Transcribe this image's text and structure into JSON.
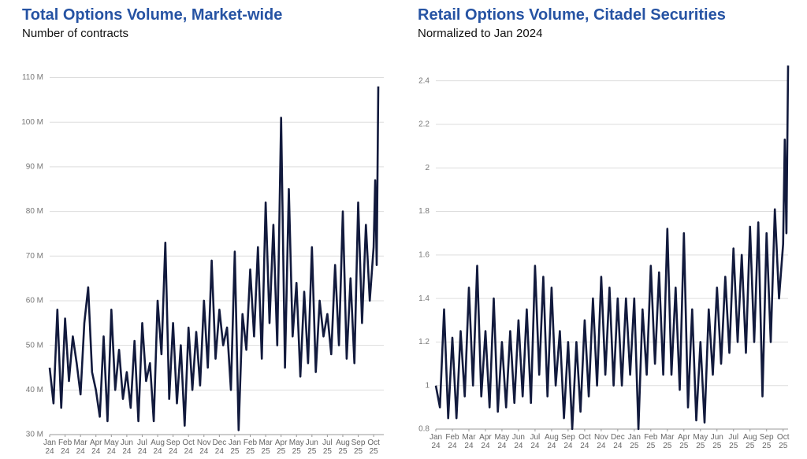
{
  "chart_data": [
    {
      "type": "line",
      "title": "Total Options Volume, Market-wide",
      "subtitle": "Number of contracts",
      "x": [
        0,
        0.25,
        0.5,
        0.75,
        1,
        1.25,
        1.5,
        1.75,
        2,
        2.25,
        2.5,
        2.75,
        3,
        3.25,
        3.5,
        3.75,
        4,
        4.25,
        4.5,
        4.75,
        5,
        5.25,
        5.5,
        5.75,
        6,
        6.25,
        6.5,
        6.75,
        7,
        7.25,
        7.5,
        7.75,
        8,
        8.25,
        8.5,
        8.75,
        9,
        9.25,
        9.5,
        9.75,
        10,
        10.25,
        10.5,
        10.75,
        11,
        11.25,
        11.5,
        11.75,
        12,
        12.25,
        12.5,
        12.75,
        13,
        13.25,
        13.5,
        13.75,
        14,
        14.25,
        14.5,
        14.75,
        15,
        15.25,
        15.5,
        15.75,
        16,
        16.25,
        16.5,
        16.75,
        17,
        17.25,
        17.5,
        17.75,
        18,
        18.25,
        18.5,
        18.75,
        19,
        19.25,
        19.5,
        19.75,
        20,
        20.25,
        20.5,
        20.75,
        21,
        21.1,
        21.2,
        21.3
      ],
      "series": [
        {
          "color": "#121a3d",
          "values": [
            45,
            37,
            58,
            36,
            56,
            42,
            52,
            46,
            39,
            55,
            63,
            44,
            40,
            34,
            52,
            33,
            58,
            40,
            49,
            38,
            44,
            36,
            51,
            33,
            55,
            42,
            46,
            33,
            60,
            48,
            73,
            38,
            55,
            37,
            50,
            32,
            54,
            40,
            53,
            41,
            60,
            45,
            69,
            47,
            58,
            50,
            54,
            40,
            71,
            31,
            57,
            49,
            67,
            52,
            72,
            47,
            82,
            55,
            77,
            50,
            101,
            45,
            85,
            52,
            64,
            43,
            62,
            46,
            72,
            44,
            60,
            52,
            57,
            48,
            68,
            50,
            80,
            47,
            65,
            46,
            82,
            55,
            77,
            60,
            72,
            87,
            68,
            108
          ]
        }
      ],
      "xticks": [
        {
          "value": 0,
          "label": "Jan 24"
        },
        {
          "value": 1,
          "label": "Feb 24"
        },
        {
          "value": 2,
          "label": "Mar 24"
        },
        {
          "value": 3,
          "label": "Apr 24"
        },
        {
          "value": 4,
          "label": "May 24"
        },
        {
          "value": 5,
          "label": "Jun 24"
        },
        {
          "value": 6,
          "label": "Jul 24"
        },
        {
          "value": 7,
          "label": "Aug 24"
        },
        {
          "value": 8,
          "label": "Sep 24"
        },
        {
          "value": 9,
          "label": "Oct 24"
        },
        {
          "value": 10,
          "label": "Nov 24"
        },
        {
          "value": 11,
          "label": "Dec 24"
        },
        {
          "value": 12,
          "label": "Jan 25"
        },
        {
          "value": 13,
          "label": "Feb 25"
        },
        {
          "value": 14,
          "label": "Mar 25"
        },
        {
          "value": 15,
          "label": "Apr 25"
        },
        {
          "value": 16,
          "label": "May 25"
        },
        {
          "value": 17,
          "label": "Jun 25"
        },
        {
          "value": 18,
          "label": "Jul 25"
        },
        {
          "value": 19,
          "label": "Aug 25"
        },
        {
          "value": 20,
          "label": "Sep 25"
        },
        {
          "value": 21,
          "label": "Oct 25"
        }
      ],
      "xlim": [
        0,
        21.3
      ],
      "ylim": [
        30,
        114.5
      ],
      "yticks": [
        {
          "value": 30,
          "label": "30 M"
        },
        {
          "value": 40,
          "label": "40 M"
        },
        {
          "value": 50,
          "label": "50 M"
        },
        {
          "value": 60,
          "label": "60 M"
        },
        {
          "value": 70,
          "label": "70 M"
        },
        {
          "value": 80,
          "label": "80 M"
        },
        {
          "value": 90,
          "label": "90 M"
        },
        {
          "value": 100,
          "label": "100 M"
        },
        {
          "value": 110,
          "label": "110 M"
        }
      ],
      "grid": true
    },
    {
      "type": "line",
      "title": "Retail Options Volume, Citadel Securities",
      "subtitle": "Normalized to Jan 2024",
      "x": [
        0,
        0.25,
        0.5,
        0.75,
        1,
        1.25,
        1.5,
        1.75,
        2,
        2.25,
        2.5,
        2.75,
        3,
        3.25,
        3.5,
        3.75,
        4,
        4.25,
        4.5,
        4.75,
        5,
        5.25,
        5.5,
        5.75,
        6,
        6.25,
        6.5,
        6.75,
        7,
        7.25,
        7.5,
        7.75,
        8,
        8.25,
        8.5,
        8.75,
        9,
        9.25,
        9.5,
        9.75,
        10,
        10.25,
        10.5,
        10.75,
        11,
        11.25,
        11.5,
        11.75,
        12,
        12.25,
        12.5,
        12.75,
        13,
        13.25,
        13.5,
        13.75,
        14,
        14.25,
        14.5,
        14.75,
        15,
        15.25,
        15.5,
        15.75,
        16,
        16.25,
        16.5,
        16.75,
        17,
        17.25,
        17.5,
        17.75,
        18,
        18.25,
        18.5,
        18.75,
        19,
        19.25,
        19.5,
        19.75,
        20,
        20.25,
        20.5,
        20.75,
        21,
        21.1,
        21.2,
        21.3
      ],
      "series": [
        {
          "color": "#121a3d",
          "values": [
            1.0,
            0.9,
            1.35,
            0.85,
            1.22,
            0.85,
            1.25,
            0.95,
            1.45,
            1.0,
            1.55,
            0.95,
            1.25,
            0.9,
            1.4,
            0.88,
            1.2,
            0.9,
            1.25,
            0.92,
            1.3,
            0.95,
            1.35,
            0.92,
            1.55,
            1.05,
            1.5,
            0.95,
            1.45,
            1.0,
            1.25,
            0.85,
            1.2,
            0.8,
            1.2,
            0.88,
            1.3,
            0.95,
            1.4,
            1.0,
            1.5,
            1.05,
            1.45,
            1.0,
            1.4,
            1.0,
            1.4,
            1.05,
            1.4,
            0.8,
            1.35,
            1.05,
            1.55,
            1.1,
            1.52,
            1.05,
            1.72,
            1.05,
            1.45,
            0.98,
            1.7,
            0.9,
            1.35,
            0.84,
            1.2,
            0.83,
            1.35,
            1.05,
            1.45,
            1.1,
            1.5,
            1.15,
            1.63,
            1.2,
            1.6,
            1.15,
            1.73,
            1.2,
            1.75,
            0.95,
            1.7,
            1.2,
            1.81,
            1.4,
            1.65,
            2.13,
            1.7,
            2.47
          ]
        }
      ],
      "xticks": [
        {
          "value": 0,
          "label": "Jan 24"
        },
        {
          "value": 1,
          "label": "Feb 24"
        },
        {
          "value": 2,
          "label": "Mar 24"
        },
        {
          "value": 3,
          "label": "Apr 24"
        },
        {
          "value": 4,
          "label": "May 24"
        },
        {
          "value": 5,
          "label": "Jun 24"
        },
        {
          "value": 6,
          "label": "Jul 24"
        },
        {
          "value": 7,
          "label": "Aug 24"
        },
        {
          "value": 8,
          "label": "Sep 24"
        },
        {
          "value": 9,
          "label": "Oct 24"
        },
        {
          "value": 10,
          "label": "Nov 24"
        },
        {
          "value": 11,
          "label": "Dec 24"
        },
        {
          "value": 12,
          "label": "Jan 25"
        },
        {
          "value": 13,
          "label": "Feb 25"
        },
        {
          "value": 14,
          "label": "Mar 25"
        },
        {
          "value": 15,
          "label": "Apr 25"
        },
        {
          "value": 16,
          "label": "May 25"
        },
        {
          "value": 17,
          "label": "Jun 25"
        },
        {
          "value": 18,
          "label": "Jul 25"
        },
        {
          "value": 19,
          "label": "Aug 25"
        },
        {
          "value": 20,
          "label": "Sep 25"
        },
        {
          "value": 21,
          "label": "Oct 25"
        }
      ],
      "xlim": [
        0,
        21.3
      ],
      "ylim": [
        0.8,
        2.5
      ],
      "yticks": [
        0.8,
        1,
        1.2,
        1.4,
        1.6,
        1.8,
        2,
        2.2,
        2.4
      ],
      "grid": true
    }
  ]
}
